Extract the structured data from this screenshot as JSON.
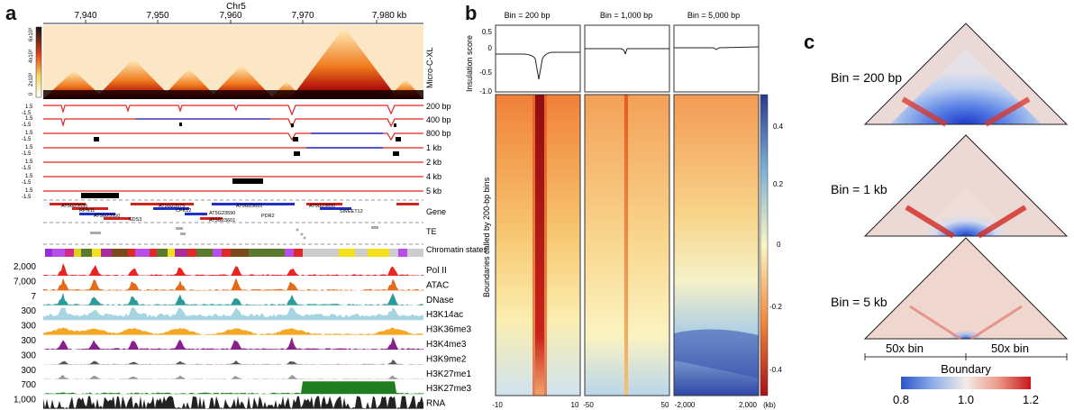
{
  "panels": {
    "a": "a",
    "b": "b",
    "c": "c"
  },
  "panel_a": {
    "chrom": "Chr5",
    "ticks": [
      "7,940",
      "7,950",
      "7,960",
      "7,970",
      "7,980 kb"
    ],
    "heatmap_label": "Micro-C-XL",
    "colorbar_labels": [
      "0",
      "2x10³",
      "4x10³",
      "6x10³"
    ],
    "bin_tracks": [
      {
        "label": "200 bp",
        "scale_top": "1.5",
        "scale_bot": "-1.5"
      },
      {
        "label": "400 bp",
        "scale_top": "1.5",
        "scale_bot": "-1.5"
      },
      {
        "label": "800 bp",
        "scale_top": "1.5",
        "scale_bot": "-1.5"
      },
      {
        "label": "1 kb",
        "scale_top": "1.5",
        "scale_bot": "-1.5"
      },
      {
        "label": "2 kb",
        "scale_top": "1.5",
        "scale_bot": "-1.5"
      },
      {
        "label": "4 kb",
        "scale_top": "1.5",
        "scale_bot": "-1.5"
      },
      {
        "label": "5 kb",
        "scale_top": "1.5",
        "scale_bot": "-1.5"
      }
    ],
    "gene_label": "Gene",
    "genes": [
      "AT5G23535",
      "RPN11",
      "AT5G23550",
      "SDS3",
      "AT5G23575",
      "CPK12",
      "AT5G23590",
      "AT5G23610",
      "AT5G23601",
      "PDR2",
      "AT5G23650",
      "SWEET12"
    ],
    "te_label": "TE",
    "chromatin_label": "Chromatin states",
    "signal_tracks": [
      {
        "label": "Pol II",
        "scale": "2,000",
        "color": "#e8251f"
      },
      {
        "label": "ATAC",
        "scale": "7,000",
        "color": "#e36c1b"
      },
      {
        "label": "DNase",
        "scale": "7",
        "color": "#2a9c98"
      },
      {
        "label": "H3K14ac",
        "scale": "300",
        "color": "#a6d4e0"
      },
      {
        "label": "H3K36me3",
        "scale": "300",
        "color": "#f5a623"
      },
      {
        "label": "H3K4me3",
        "scale": "300",
        "color": "#8a1f8e"
      },
      {
        "label": "H3K9me2",
        "scale": "300",
        "color": "#555555"
      },
      {
        "label": "H3K27me1",
        "scale": "300",
        "color": "#999999"
      },
      {
        "label": "H3K27me3",
        "scale": "700",
        "color": "#1e7d1e"
      },
      {
        "label": "RNA",
        "scale": "1,000",
        "color": "#222222"
      }
    ]
  },
  "panel_b": {
    "columns": [
      "Bin = 200 bp",
      "Bin = 1,000 bp",
      "Bin = 5,000 bp"
    ],
    "ylabel_top": "Insulation score",
    "yticks_top": [
      "0.5",
      "0",
      "-0.5",
      "-1.0"
    ],
    "ylabel_main": "Boundaries called by 200-bp bins",
    "xticks": [
      [
        "-10",
        "10"
      ],
      [
        "-50",
        "50"
      ],
      [
        "-2,000",
        "2,000"
      ]
    ],
    "xunit": "(kb)",
    "colorbar_ticks": [
      "0.4",
      "0.2",
      "0",
      "-0.2",
      "-0.4"
    ]
  },
  "panel_c": {
    "triangles": [
      "Bin = 200 bp",
      "Bin = 1 kb",
      "Bin = 5 kb"
    ],
    "left_label": "50x bin",
    "right_label": "50x bin",
    "boundary_label": "Boundary",
    "colorbar_ticks": [
      "0.8",
      "1.0",
      "1.2"
    ]
  }
}
